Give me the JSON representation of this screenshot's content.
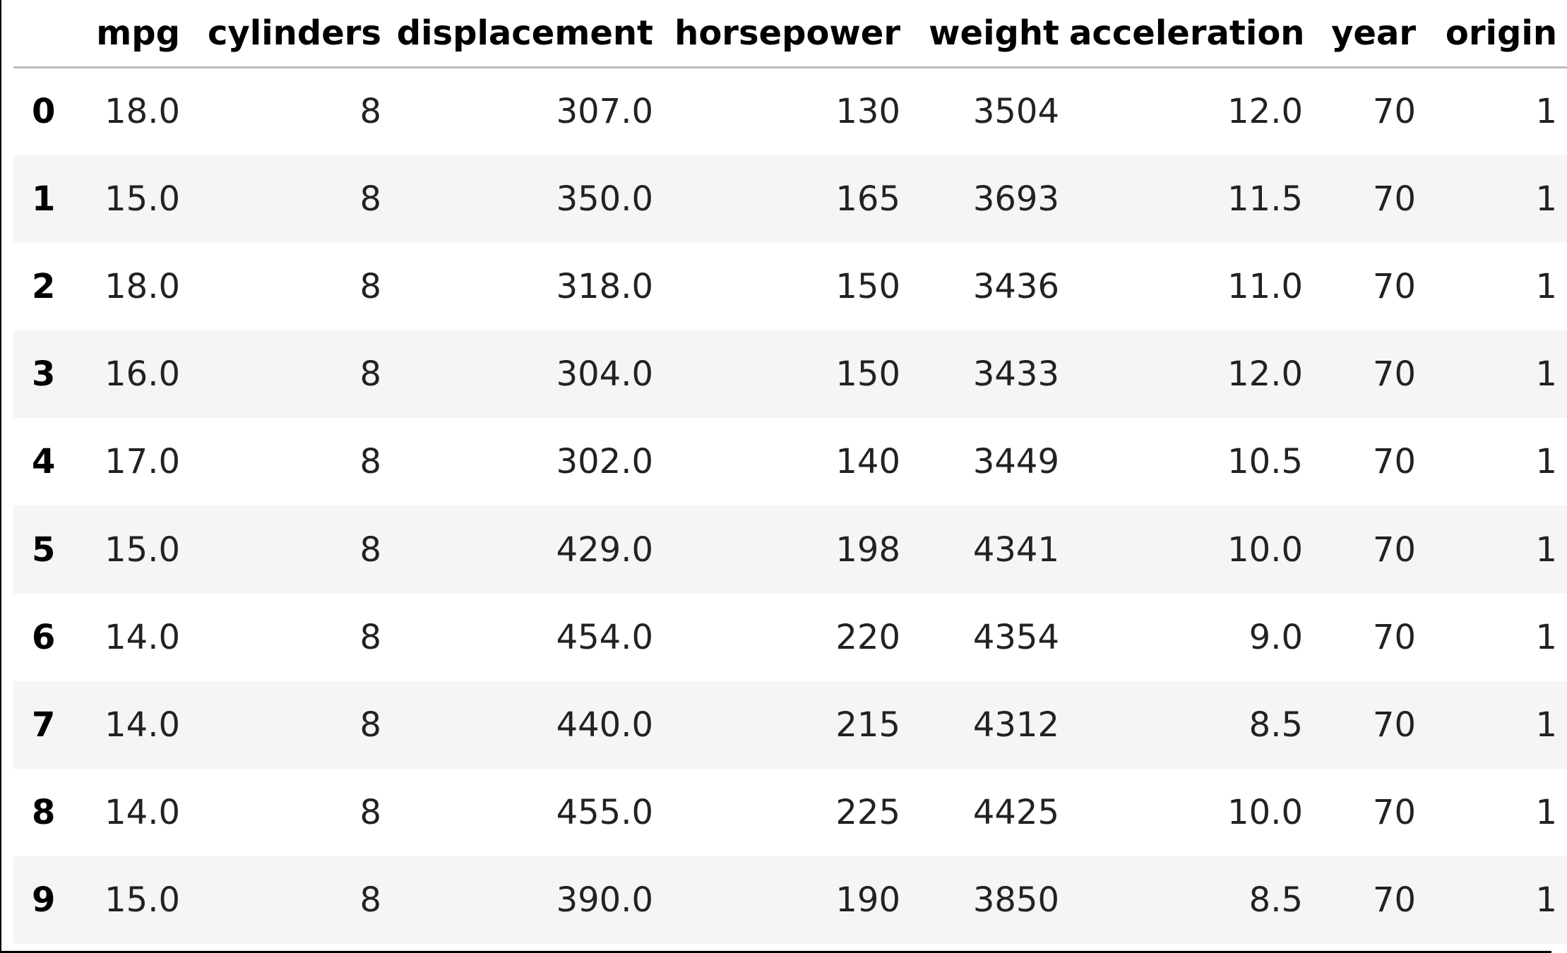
{
  "table": {
    "columns": [
      "mpg",
      "cylinders",
      "displacement",
      "horsepower",
      "weight",
      "acceleration",
      "year",
      "origin"
    ],
    "index": [
      "0",
      "1",
      "2",
      "3",
      "4",
      "5",
      "6",
      "7",
      "8",
      "9"
    ],
    "rows": [
      [
        "18.0",
        "8",
        "307.0",
        "130",
        "3504",
        "12.0",
        "70",
        "1"
      ],
      [
        "15.0",
        "8",
        "350.0",
        "165",
        "3693",
        "11.5",
        "70",
        "1"
      ],
      [
        "18.0",
        "8",
        "318.0",
        "150",
        "3436",
        "11.0",
        "70",
        "1"
      ],
      [
        "16.0",
        "8",
        "304.0",
        "150",
        "3433",
        "12.0",
        "70",
        "1"
      ],
      [
        "17.0",
        "8",
        "302.0",
        "140",
        "3449",
        "10.5",
        "70",
        "1"
      ],
      [
        "15.0",
        "8",
        "429.0",
        "198",
        "4341",
        "10.0",
        "70",
        "1"
      ],
      [
        "14.0",
        "8",
        "454.0",
        "220",
        "4354",
        "9.0",
        "70",
        "1"
      ],
      [
        "14.0",
        "8",
        "440.0",
        "215",
        "4312",
        "8.5",
        "70",
        "1"
      ],
      [
        "14.0",
        "8",
        "455.0",
        "225",
        "4425",
        "10.0",
        "70",
        "1"
      ],
      [
        "15.0",
        "8",
        "390.0",
        "190",
        "3850",
        "8.5",
        "70",
        "1"
      ]
    ]
  },
  "colors": {
    "stripe": "#f5f5f5",
    "header_rule": "#bdbdbd",
    "text": "#222222"
  }
}
